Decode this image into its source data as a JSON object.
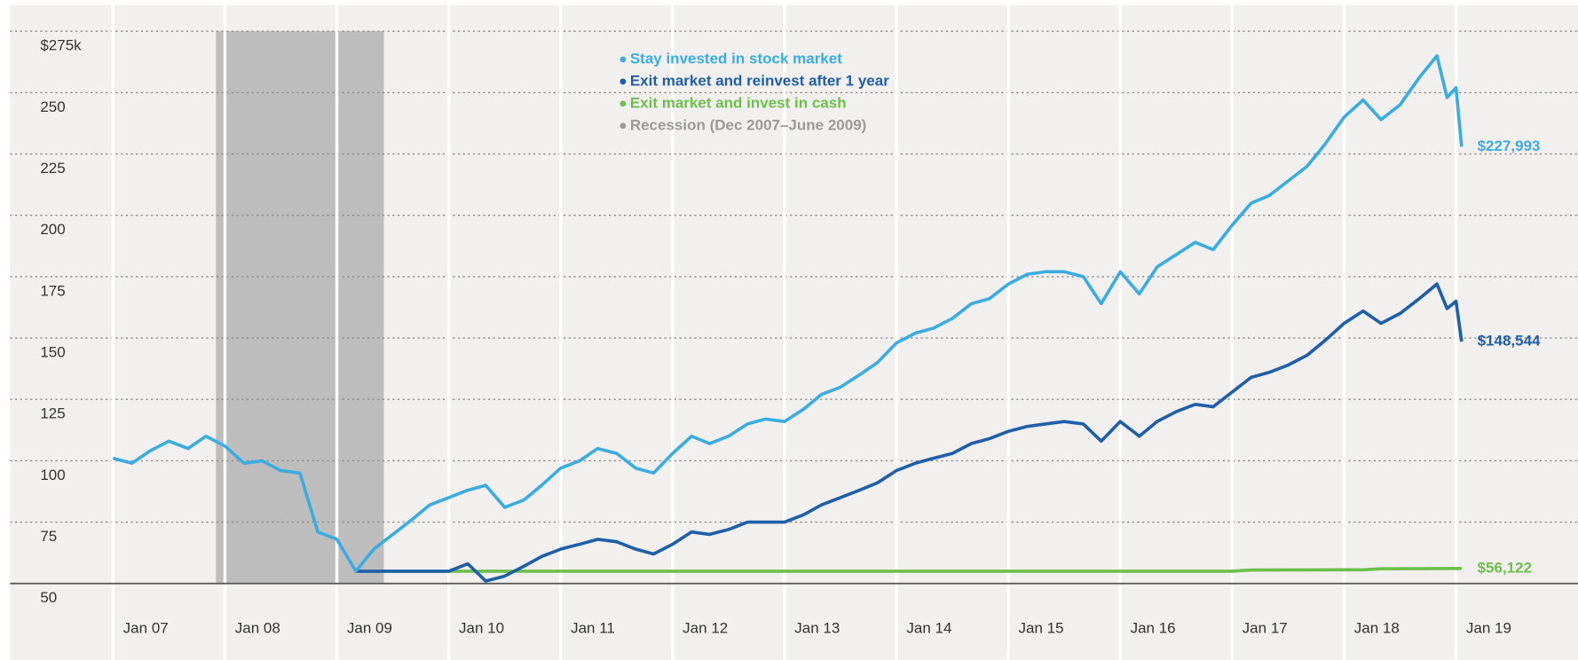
{
  "chart_data": {
    "type": "line",
    "xlim": [
      2006.08,
      2020.09
    ],
    "xticks": [
      {
        "value": 2007,
        "label": "Jan 07"
      },
      {
        "value": 2008,
        "label": "Jan 08"
      },
      {
        "value": 2009,
        "label": "Jan 09"
      },
      {
        "value": 2010,
        "label": "Jan 10"
      },
      {
        "value": 2011,
        "label": "Jan 11"
      },
      {
        "value": 2012,
        "label": "Jan 12"
      },
      {
        "value": 2013,
        "label": "Jan 13"
      },
      {
        "value": 2014,
        "label": "Jan 14"
      },
      {
        "value": 2015,
        "label": "Jan 15"
      },
      {
        "value": 2016,
        "label": "Jan 16"
      },
      {
        "value": 2017,
        "label": "Jan 17"
      },
      {
        "value": 2018,
        "label": "Jan 18"
      },
      {
        "value": 2019,
        "label": "Jan 19"
      }
    ],
    "ylim": [
      50,
      275
    ],
    "yticks": [
      50,
      75,
      100,
      125,
      150,
      175,
      200,
      225,
      250,
      {
        "value": 275,
        "label": "$275k"
      }
    ],
    "grid": true,
    "recession": {
      "name": "Recession (Dec 2007–June 2009)",
      "start": 2007.92,
      "end": 2009.42,
      "color": "#bdbdbd"
    },
    "series": [
      {
        "name": "Stay invested in stock market",
        "color": "#3aace2",
        "x": [
          2007,
          2007.17,
          2007.33,
          2007.5,
          2007.67,
          2007.83,
          2008,
          2008.17,
          2008.33,
          2008.5,
          2008.67,
          2008.83,
          2009,
          2009.17,
          2009.33,
          2009.5,
          2009.67,
          2009.83,
          2010,
          2010.17,
          2010.33,
          2010.5,
          2010.67,
          2010.83,
          2011,
          2011.17,
          2011.33,
          2011.5,
          2011.67,
          2011.83,
          2012,
          2012.17,
          2012.33,
          2012.5,
          2012.67,
          2012.83,
          2013,
          2013.17,
          2013.33,
          2013.5,
          2013.67,
          2013.83,
          2014,
          2014.17,
          2014.33,
          2014.5,
          2014.67,
          2014.83,
          2015,
          2015.17,
          2015.33,
          2015.5,
          2015.67,
          2015.83,
          2016,
          2016.17,
          2016.33,
          2016.5,
          2016.67,
          2016.83,
          2017,
          2017.17,
          2017.33,
          2017.5,
          2017.67,
          2017.83,
          2018,
          2018.17,
          2018.33,
          2018.5,
          2018.67,
          2018.83,
          2018.92,
          2019,
          2019.05
        ],
        "values": [
          101,
          99,
          104,
          108,
          105,
          110,
          106,
          99,
          100,
          96,
          95,
          71,
          68,
          55,
          64,
          70,
          76,
          82,
          85,
          88,
          90,
          81,
          84,
          90,
          97,
          100,
          105,
          103,
          97,
          95,
          103,
          110,
          107,
          110,
          115,
          117,
          116,
          121,
          127,
          130,
          135,
          140,
          148,
          152,
          154,
          158,
          164,
          166,
          172,
          176,
          177,
          177,
          175,
          164,
          177,
          168,
          179,
          184,
          189,
          186,
          196,
          205,
          208,
          214,
          220,
          229,
          240,
          247,
          239,
          245,
          256,
          265,
          248,
          252,
          227.993
        ],
        "end_label": "$227,993"
      },
      {
        "name": "Exit market and reinvest after 1 year",
        "color": "#1f5ea8",
        "x": [
          2009.17,
          2009.33,
          2009.5,
          2009.67,
          2009.83,
          2010,
          2010.17,
          2010.33,
          2010.5,
          2010.67,
          2010.83,
          2011,
          2011.17,
          2011.33,
          2011.5,
          2011.67,
          2011.83,
          2012,
          2012.17,
          2012.33,
          2012.5,
          2012.67,
          2012.83,
          2013,
          2013.17,
          2013.33,
          2013.5,
          2013.67,
          2013.83,
          2014,
          2014.17,
          2014.33,
          2014.5,
          2014.67,
          2014.83,
          2015,
          2015.17,
          2015.33,
          2015.5,
          2015.67,
          2015.83,
          2016,
          2016.17,
          2016.33,
          2016.5,
          2016.67,
          2016.83,
          2017,
          2017.17,
          2017.33,
          2017.5,
          2017.67,
          2017.83,
          2018,
          2018.17,
          2018.33,
          2018.5,
          2018.67,
          2018.83,
          2018.92,
          2019,
          2019.05
        ],
        "values": [
          55,
          55,
          55,
          55,
          55,
          55,
          58,
          51,
          53,
          57,
          61,
          64,
          66,
          68,
          67,
          64,
          62,
          66,
          71,
          70,
          72,
          75,
          75,
          75,
          78,
          82,
          85,
          88,
          91,
          96,
          99,
          101,
          103,
          107,
          109,
          112,
          114,
          115,
          116,
          115,
          108,
          116,
          110,
          116,
          120,
          123,
          122,
          128,
          134,
          136,
          139,
          143,
          149,
          156,
          161,
          156,
          160,
          166,
          172,
          162,
          165,
          148.544
        ],
        "end_label": "$148,544"
      },
      {
        "name": "Exit market and invest in cash",
        "color": "#6cbf4a",
        "x": [
          2009.17,
          2017,
          2017.17,
          2018.17,
          2018.33,
          2019.05
        ],
        "values": [
          55,
          55,
          55.5,
          55.6,
          56,
          56.122
        ],
        "end_label": "$56,122"
      }
    ]
  }
}
